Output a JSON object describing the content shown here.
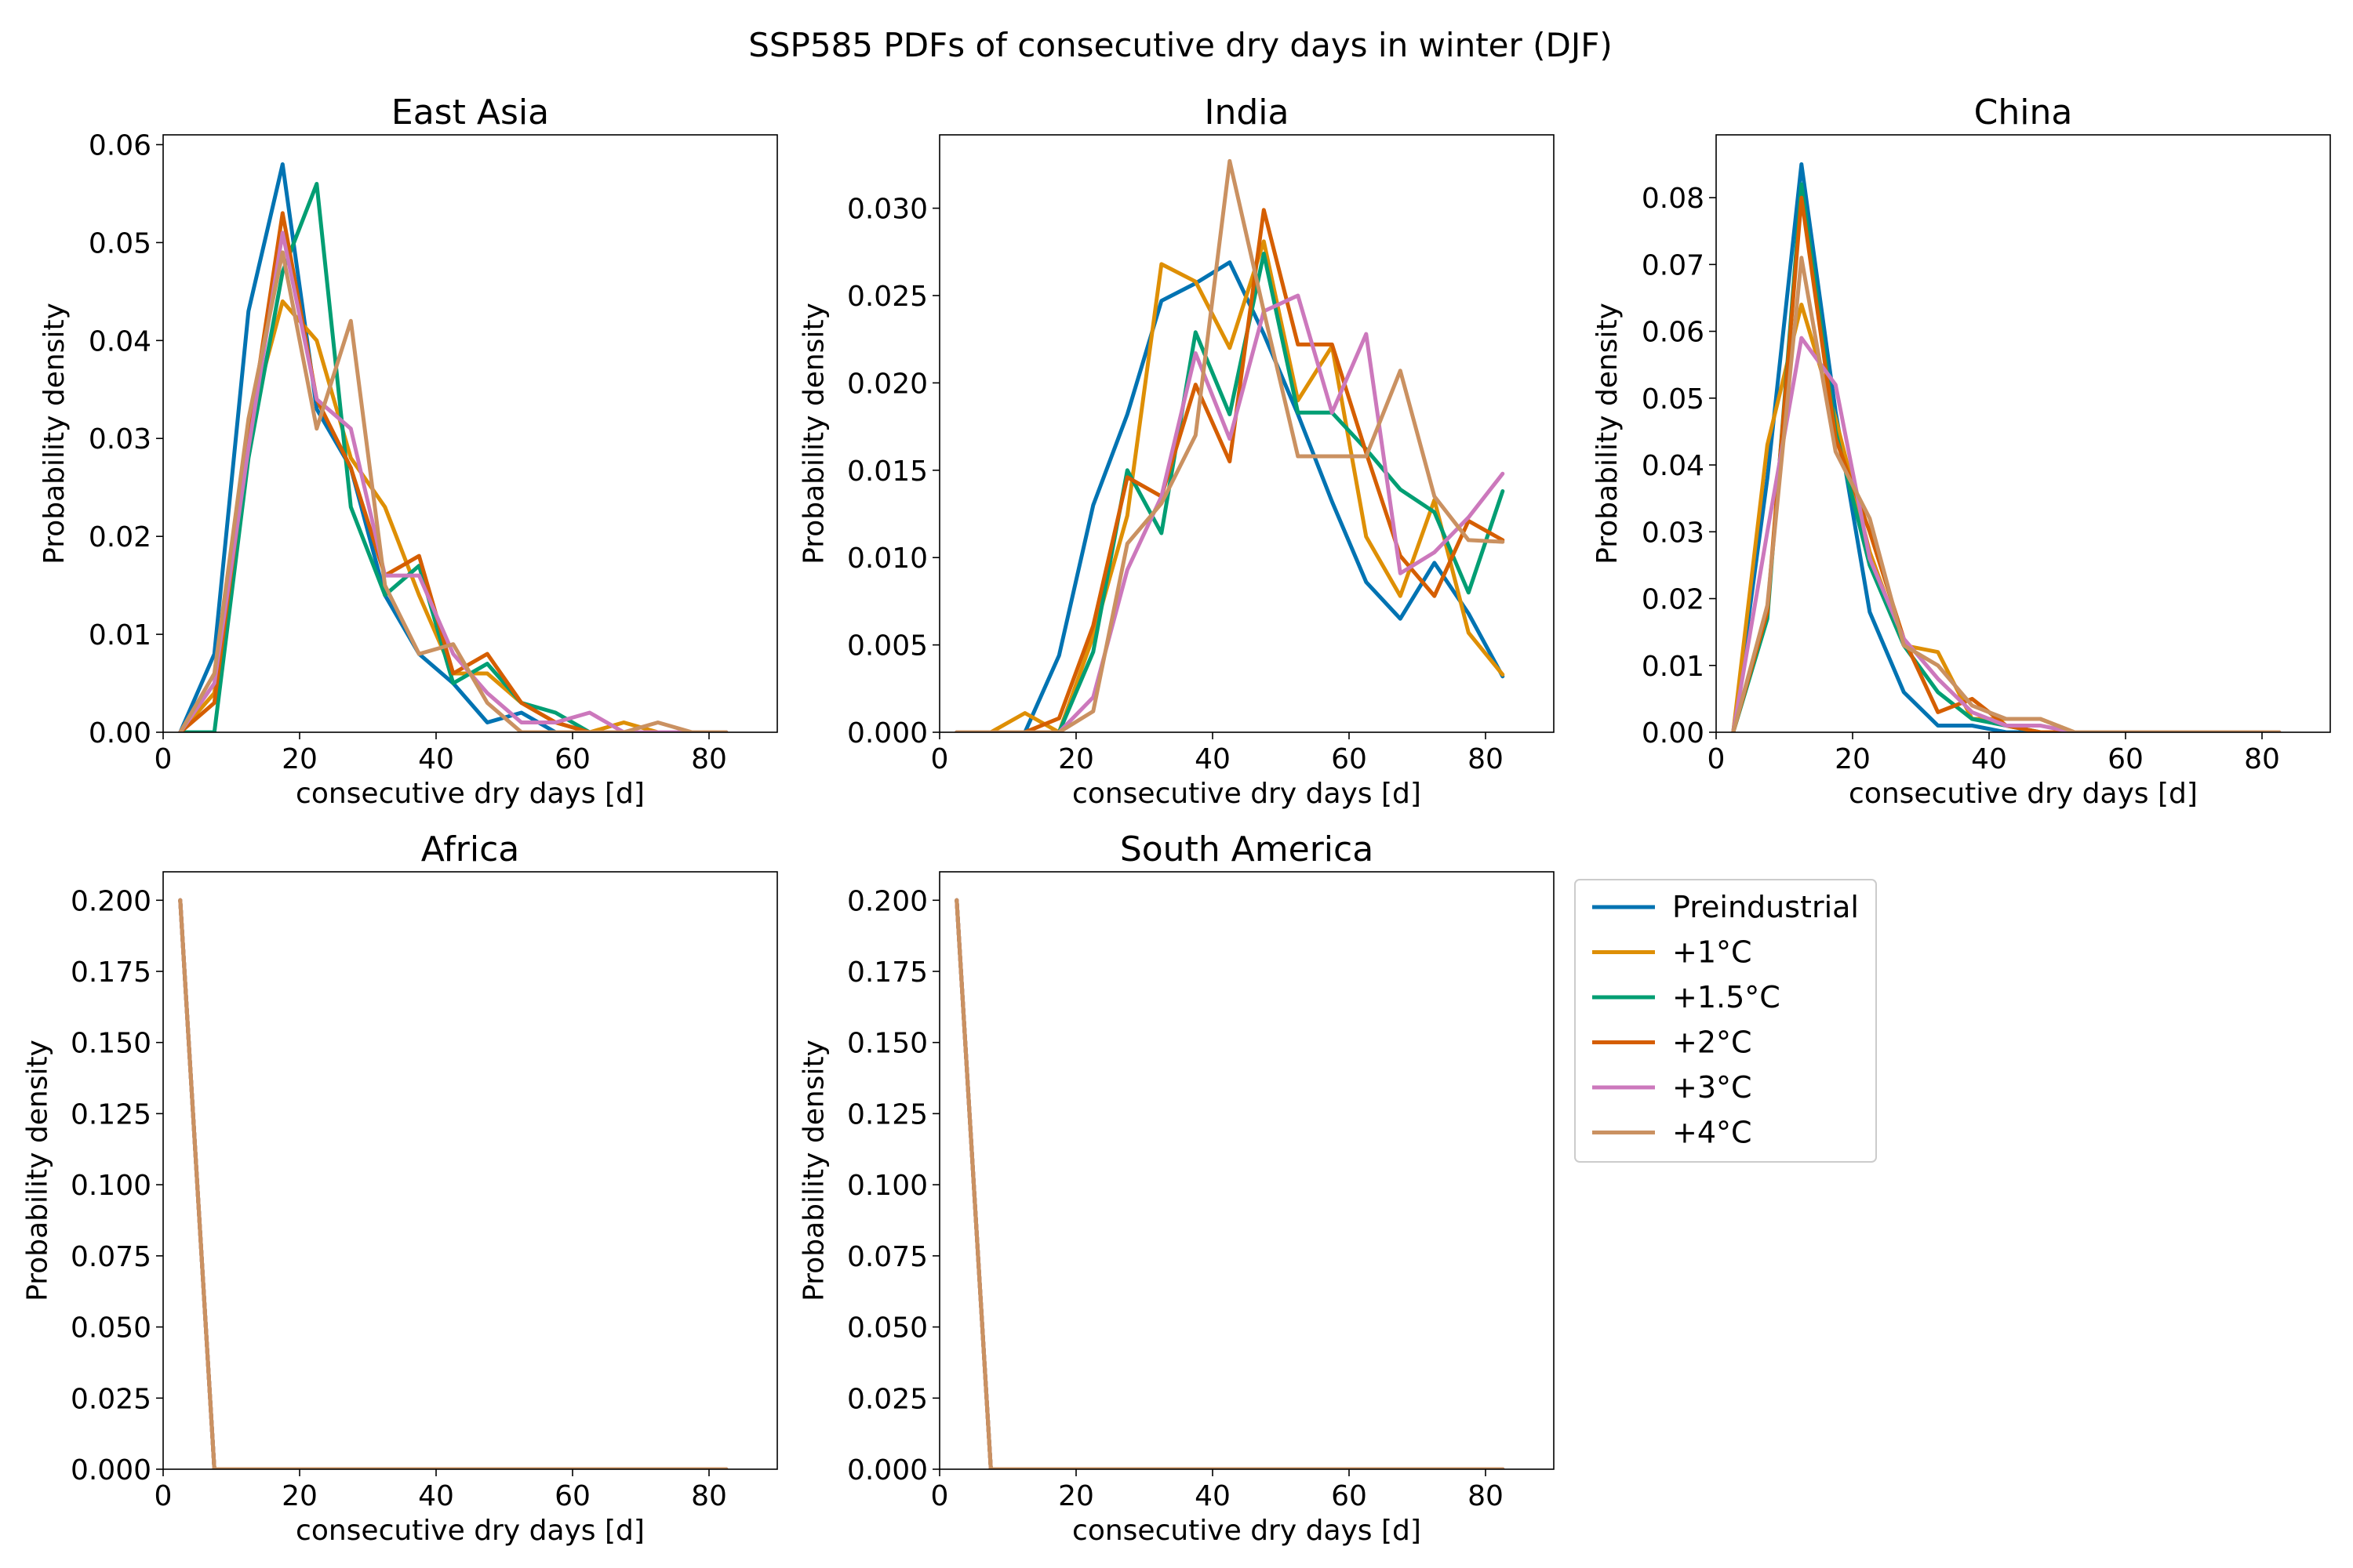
{
  "figure": {
    "title": "SSP585 PDFs of consecutive dry days in winter (DJF)"
  },
  "legend": {
    "placement": "right of bottom row",
    "items": [
      {
        "label": "Preindustrial",
        "color": "#0173b2"
      },
      {
        "label": "+1°C",
        "color": "#de8f05"
      },
      {
        "label": "+1.5°C",
        "color": "#029e73"
      },
      {
        "label": "+2°C",
        "color": "#d55e00"
      },
      {
        "label": "+3°C",
        "color": "#cc78bc"
      },
      {
        "label": "+4°C",
        "color": "#ca9161"
      }
    ]
  },
  "chart_data": [
    {
      "type": "line",
      "title": "East Asia",
      "xlabel": "consecutive dry days [d]",
      "ylabel": "Probability density",
      "xlim": [
        0,
        90
      ],
      "ylim": [
        0,
        0.061
      ],
      "xticks": [
        "0",
        "20",
        "40",
        "60",
        "80"
      ],
      "xtick_values": [
        0,
        20,
        40,
        60,
        80
      ],
      "yticks": [
        "0.00",
        "0.01",
        "0.02",
        "0.03",
        "0.04",
        "0.05",
        "0.06"
      ],
      "ytick_values": [
        0,
        0.01,
        0.02,
        0.03,
        0.04,
        0.05,
        0.06
      ],
      "grid": false,
      "x": [
        2.5,
        7.5,
        12.5,
        17.5,
        22.5,
        27.5,
        32.5,
        37.5,
        42.5,
        47.5,
        52.5,
        57.5,
        62.5,
        67.5,
        72.5,
        77.5,
        82.5
      ],
      "series": [
        {
          "name": "Preindustrial",
          "values": [
            0,
            0.008,
            0.043,
            0.058,
            0.033,
            0.027,
            0.014,
            0.008,
            0.005,
            0.001,
            0.002,
            0,
            0,
            0,
            0,
            0,
            0
          ]
        },
        {
          "name": "+1°C",
          "values": [
            0,
            0.004,
            0.031,
            0.044,
            0.04,
            0.028,
            0.023,
            0.014,
            0.006,
            0.006,
            0.003,
            0.001,
            0,
            0.001,
            0,
            0,
            0
          ]
        },
        {
          "name": "+1.5°C",
          "values": [
            0,
            0,
            0.028,
            0.047,
            0.056,
            0.023,
            0.014,
            0.017,
            0.005,
            0.007,
            0.003,
            0.002,
            0,
            0,
            0,
            0,
            0
          ]
        },
        {
          "name": "+2°C",
          "values": [
            0,
            0.003,
            0.03,
            0.053,
            0.034,
            0.027,
            0.016,
            0.018,
            0.006,
            0.008,
            0.003,
            0.001,
            0,
            0,
            0,
            0,
            0
          ]
        },
        {
          "name": "+3°C",
          "values": [
            0,
            0.005,
            0.029,
            0.051,
            0.034,
            0.031,
            0.016,
            0.016,
            0.008,
            0.004,
            0.001,
            0.001,
            0.002,
            0,
            0,
            0,
            0
          ]
        },
        {
          "name": "+4°C",
          "values": [
            0,
            0.006,
            0.032,
            0.049,
            0.031,
            0.042,
            0.015,
            0.008,
            0.009,
            0.003,
            0,
            0,
            0,
            0,
            0.001,
            0,
            0
          ]
        }
      ]
    },
    {
      "type": "line",
      "title": "India",
      "xlabel": "consecutive dry days [d]",
      "ylabel": "Probability density",
      "xlim": [
        0,
        90
      ],
      "ylim": [
        0,
        0.0342
      ],
      "xticks": [
        "0",
        "20",
        "40",
        "60",
        "80"
      ],
      "xtick_values": [
        0,
        20,
        40,
        60,
        80
      ],
      "yticks": [
        "0.000",
        "0.005",
        "0.010",
        "0.015",
        "0.020",
        "0.025",
        "0.030"
      ],
      "ytick_values": [
        0,
        0.005,
        0.01,
        0.015,
        0.02,
        0.025,
        0.03
      ],
      "grid": false,
      "x": [
        2.5,
        7.5,
        12.5,
        17.5,
        22.5,
        27.5,
        32.5,
        37.5,
        42.5,
        47.5,
        52.5,
        57.5,
        62.5,
        67.5,
        72.5,
        77.5,
        82.5
      ],
      "series": [
        {
          "name": "Preindustrial",
          "values": [
            0,
            0,
            0,
            0.0044,
            0.013,
            0.0182,
            0.0247,
            0.0257,
            0.0269,
            0.0228,
            0.0182,
            0.0132,
            0.0086,
            0.0065,
            0.0097,
            0.0068,
            0.0032
          ]
        },
        {
          "name": "+1°C",
          "values": [
            0,
            0,
            0.0011,
            0,
            0.0055,
            0.0124,
            0.0268,
            0.0258,
            0.022,
            0.0281,
            0.019,
            0.0221,
            0.0112,
            0.0078,
            0.0133,
            0.0057,
            0.0033
          ]
        },
        {
          "name": "+1.5°C",
          "values": [
            0,
            0,
            0,
            0,
            0.0046,
            0.015,
            0.0114,
            0.0229,
            0.0182,
            0.0274,
            0.0183,
            0.0183,
            0.0162,
            0.0139,
            0.0126,
            0.008,
            0.0138
          ]
        },
        {
          "name": "+2°C",
          "values": [
            0,
            0,
            0,
            0.0008,
            0.0061,
            0.0146,
            0.0135,
            0.0199,
            0.0155,
            0.0299,
            0.0222,
            0.0222,
            0.016,
            0.0101,
            0.0078,
            0.0121,
            0.011
          ]
        },
        {
          "name": "+3°C",
          "values": [
            0,
            0,
            0,
            0,
            0.002,
            0.0093,
            0.0135,
            0.0217,
            0.0168,
            0.0241,
            0.025,
            0.0183,
            0.0228,
            0.0091,
            0.0103,
            0.0123,
            0.0148
          ]
        },
        {
          "name": "+4°C",
          "values": [
            0,
            0,
            0,
            0,
            0.0012,
            0.0108,
            0.0131,
            0.017,
            0.0327,
            0.0241,
            0.0158,
            0.0158,
            0.0158,
            0.0207,
            0.0135,
            0.011,
            0.0109
          ]
        }
      ]
    },
    {
      "type": "line",
      "title": "China",
      "xlabel": "consecutive dry days [d]",
      "ylabel": "Probability density",
      "xlim": [
        0,
        90
      ],
      "ylim": [
        0,
        0.0894
      ],
      "xticks": [
        "0",
        "20",
        "40",
        "60",
        "80"
      ],
      "xtick_values": [
        0,
        20,
        40,
        60,
        80
      ],
      "yticks": [
        "0.00",
        "0.01",
        "0.02",
        "0.03",
        "0.04",
        "0.05",
        "0.06",
        "0.07",
        "0.08"
      ],
      "ytick_values": [
        0,
        0.01,
        0.02,
        0.03,
        0.04,
        0.05,
        0.06,
        0.07,
        0.08
      ],
      "grid": false,
      "x": [
        2.5,
        7.5,
        12.5,
        17.5,
        22.5,
        27.5,
        32.5,
        37.5,
        42.5,
        47.5,
        52.5,
        57.5,
        62.5,
        67.5,
        72.5,
        77.5,
        82.5
      ],
      "series": [
        {
          "name": "Preindustrial",
          "values": [
            0,
            0.038,
            0.085,
            0.048,
            0.018,
            0.006,
            0.001,
            0.001,
            0,
            0,
            0,
            0,
            0,
            0,
            0,
            0,
            0
          ]
        },
        {
          "name": "+1°C",
          "values": [
            0,
            0.043,
            0.064,
            0.047,
            0.027,
            0.013,
            0.012,
            0.002,
            0.002,
            0.002,
            0,
            0,
            0,
            0,
            0,
            0,
            0
          ]
        },
        {
          "name": "+1.5°C",
          "values": [
            0,
            0.017,
            0.082,
            0.045,
            0.025,
            0.013,
            0.006,
            0.002,
            0.001,
            0,
            0,
            0,
            0,
            0,
            0,
            0,
            0
          ]
        },
        {
          "name": "+2°C",
          "values": [
            0,
            0.018,
            0.08,
            0.044,
            0.03,
            0.014,
            0.003,
            0.005,
            0.001,
            0,
            0,
            0,
            0,
            0,
            0,
            0,
            0
          ]
        },
        {
          "name": "+3°C",
          "values": [
            0,
            0.03,
            0.059,
            0.052,
            0.026,
            0.014,
            0.008,
            0.003,
            0.001,
            0.001,
            0,
            0,
            0,
            0,
            0,
            0,
            0
          ]
        },
        {
          "name": "+4°C",
          "values": [
            0,
            0.019,
            0.071,
            0.042,
            0.032,
            0.013,
            0.01,
            0.004,
            0.002,
            0.002,
            0,
            0,
            0,
            0,
            0,
            0,
            0
          ]
        }
      ]
    },
    {
      "type": "line",
      "title": "Africa",
      "xlabel": "consecutive dry days [d]",
      "ylabel": "Probability density",
      "xlim": [
        0,
        90
      ],
      "ylim": [
        0,
        0.21
      ],
      "xticks": [
        "0",
        "20",
        "40",
        "60",
        "80"
      ],
      "xtick_values": [
        0,
        20,
        40,
        60,
        80
      ],
      "yticks": [
        "0.000",
        "0.025",
        "0.050",
        "0.075",
        "0.100",
        "0.125",
        "0.150",
        "0.175",
        "0.200"
      ],
      "ytick_values": [
        0,
        0.025,
        0.05,
        0.075,
        0.1,
        0.125,
        0.15,
        0.175,
        0.2
      ],
      "grid": false,
      "x": [
        2.5,
        7.5,
        12.5,
        17.5,
        22.5,
        27.5,
        32.5,
        37.5,
        42.5,
        47.5,
        52.5,
        57.5,
        62.5,
        67.5,
        72.5,
        77.5,
        82.5
      ],
      "series": [
        {
          "name": "Preindustrial",
          "values": [
            0.2,
            0,
            0,
            0,
            0,
            0,
            0,
            0,
            0,
            0,
            0,
            0,
            0,
            0,
            0,
            0,
            0
          ]
        },
        {
          "name": "+1°C",
          "values": [
            0.2,
            0,
            0,
            0,
            0,
            0,
            0,
            0,
            0,
            0,
            0,
            0,
            0,
            0,
            0,
            0,
            0
          ]
        },
        {
          "name": "+1.5°C",
          "values": [
            0.2,
            0,
            0,
            0,
            0,
            0,
            0,
            0,
            0,
            0,
            0,
            0,
            0,
            0,
            0,
            0,
            0
          ]
        },
        {
          "name": "+2°C",
          "values": [
            0.2,
            0,
            0,
            0,
            0,
            0,
            0,
            0,
            0,
            0,
            0,
            0,
            0,
            0,
            0,
            0,
            0
          ]
        },
        {
          "name": "+3°C",
          "values": [
            0.2,
            0,
            0,
            0,
            0,
            0,
            0,
            0,
            0,
            0,
            0,
            0,
            0,
            0,
            0,
            0,
            0
          ]
        },
        {
          "name": "+4°C",
          "values": [
            0.2,
            0,
            0,
            0,
            0,
            0,
            0,
            0,
            0,
            0,
            0,
            0,
            0,
            0,
            0,
            0,
            0
          ]
        }
      ]
    },
    {
      "type": "line",
      "title": "South America",
      "xlabel": "consecutive dry days [d]",
      "ylabel": "Probability density",
      "xlim": [
        0,
        90
      ],
      "ylim": [
        0,
        0.21
      ],
      "xticks": [
        "0",
        "20",
        "40",
        "60",
        "80"
      ],
      "xtick_values": [
        0,
        20,
        40,
        60,
        80
      ],
      "yticks": [
        "0.000",
        "0.025",
        "0.050",
        "0.075",
        "0.100",
        "0.125",
        "0.150",
        "0.175",
        "0.200"
      ],
      "ytick_values": [
        0,
        0.025,
        0.05,
        0.075,
        0.1,
        0.125,
        0.15,
        0.175,
        0.2
      ],
      "grid": false,
      "x": [
        2.5,
        7.5,
        12.5,
        17.5,
        22.5,
        27.5,
        32.5,
        37.5,
        42.5,
        47.5,
        52.5,
        57.5,
        62.5,
        67.5,
        72.5,
        77.5,
        82.5
      ],
      "series": [
        {
          "name": "Preindustrial",
          "values": [
            0.2,
            0,
            0,
            0,
            0,
            0,
            0,
            0,
            0,
            0,
            0,
            0,
            0,
            0,
            0,
            0,
            0
          ]
        },
        {
          "name": "+1°C",
          "values": [
            0.2,
            0,
            0,
            0,
            0,
            0,
            0,
            0,
            0,
            0,
            0,
            0,
            0,
            0,
            0,
            0,
            0
          ]
        },
        {
          "name": "+1.5°C",
          "values": [
            0.2,
            0,
            0,
            0,
            0,
            0,
            0,
            0,
            0,
            0,
            0,
            0,
            0,
            0,
            0,
            0,
            0
          ]
        },
        {
          "name": "+2°C",
          "values": [
            0.2,
            0,
            0,
            0,
            0,
            0,
            0,
            0,
            0,
            0,
            0,
            0,
            0,
            0,
            0,
            0,
            0
          ]
        },
        {
          "name": "+3°C",
          "values": [
            0.2,
            0,
            0,
            0,
            0,
            0,
            0,
            0,
            0,
            0,
            0,
            0,
            0,
            0,
            0,
            0,
            0
          ]
        },
        {
          "name": "+4°C",
          "values": [
            0.2,
            0,
            0,
            0,
            0,
            0,
            0,
            0,
            0,
            0,
            0,
            0,
            0,
            0,
            0,
            0,
            0
          ]
        }
      ]
    }
  ]
}
